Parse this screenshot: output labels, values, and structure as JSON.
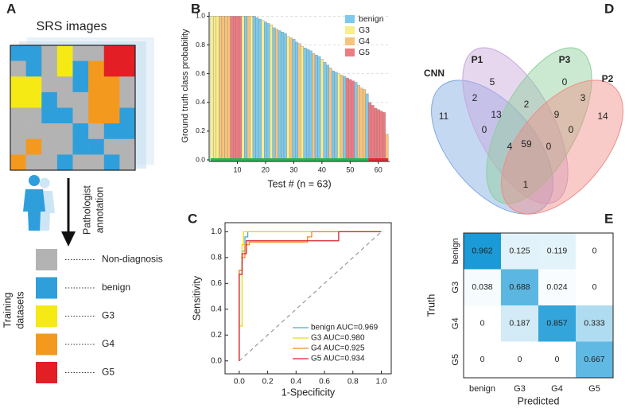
{
  "panels": [
    "A",
    "B",
    "C",
    "D",
    "E"
  ],
  "panel_a": {
    "title": "SRS images",
    "annotation": [
      "Pathologist",
      "annotation"
    ],
    "training": [
      "Training",
      "datasets"
    ],
    "legend": [
      {
        "label": "Non-diagnosis",
        "color": "#b3b3b3"
      },
      {
        "label": "benign",
        "color": "#2f9fdc"
      },
      {
        "label": "G3",
        "color": "#f5ea14"
      },
      {
        "label": "G4",
        "color": "#f39a1e"
      },
      {
        "label": "G5",
        "color": "#e31e24"
      }
    ]
  },
  "chart_data": [
    {
      "type": "bar",
      "x_label": "Test # (n = 63)",
      "y_label": "Ground truth class probability",
      "x": [
        1,
        2,
        3,
        4,
        5,
        6,
        7,
        8,
        9,
        10,
        11,
        12,
        13,
        14,
        15,
        16,
        17,
        18,
        19,
        20,
        21,
        22,
        23,
        24,
        25,
        26,
        27,
        28,
        29,
        30,
        31,
        32,
        33,
        34,
        35,
        36,
        37,
        38,
        39,
        40,
        41,
        42,
        43,
        44,
        45,
        46,
        47,
        48,
        49,
        50,
        51,
        52,
        53,
        54,
        55,
        56,
        57,
        58,
        59,
        60,
        61,
        62,
        63
      ],
      "values": [
        1,
        1,
        1,
        1,
        1,
        1,
        1,
        1,
        1,
        1,
        1,
        1,
        1,
        1,
        1,
        1,
        0.99,
        0.98,
        0.97,
        0.96,
        0.95,
        0.94,
        0.92,
        0.91,
        0.9,
        0.89,
        0.88,
        0.86,
        0.85,
        0.84,
        0.82,
        0.81,
        0.79,
        0.78,
        0.77,
        0.76,
        0.74,
        0.73,
        0.72,
        0.7,
        0.68,
        0.66,
        0.64,
        0.62,
        0.61,
        0.6,
        0.59,
        0.58,
        0.57,
        0.56,
        0.55,
        0.54,
        0.52,
        0.5,
        0.49,
        0.46,
        0.4,
        0.38,
        0.36,
        0.35,
        0.34,
        0.33,
        0.18
      ],
      "bar_class": [
        1,
        1,
        1,
        2,
        2,
        2,
        2,
        3,
        3,
        3,
        3,
        1,
        0,
        2,
        1,
        0,
        0,
        0,
        1,
        0,
        0,
        1,
        0,
        2,
        0,
        0,
        0,
        1,
        2,
        0,
        0,
        2,
        1,
        0,
        0,
        0,
        2,
        0,
        0,
        1,
        0,
        0,
        2,
        0,
        0,
        1,
        2,
        0,
        3,
        3,
        3,
        0,
        2,
        2,
        2,
        0,
        3,
        3,
        3,
        3,
        3,
        3,
        2
      ],
      "correct": [
        true,
        true,
        true,
        true,
        true,
        true,
        true,
        true,
        true,
        true,
        true,
        true,
        true,
        true,
        true,
        true,
        true,
        true,
        true,
        true,
        true,
        true,
        true,
        true,
        true,
        true,
        true,
        true,
        true,
        true,
        true,
        true,
        true,
        true,
        true,
        true,
        true,
        true,
        true,
        true,
        true,
        true,
        true,
        true,
        true,
        true,
        true,
        true,
        true,
        true,
        true,
        true,
        true,
        true,
        true,
        true,
        false,
        false,
        false,
        false,
        false,
        false,
        false
      ],
      "strip_colors": {
        "correct": "#2bb34a",
        "incorrect": "#e8262a"
      },
      "legend": [
        {
          "name": "benign",
          "color": "#7ccaec"
        },
        {
          "name": "G3",
          "color": "#f8ee8c"
        },
        {
          "name": "G4",
          "color": "#f8c47c"
        },
        {
          "name": "G5",
          "color": "#ee7a82"
        }
      ],
      "legend_position": "upper right",
      "xlim": [
        0,
        64
      ],
      "xticks": [
        10,
        20,
        30,
        40,
        50,
        60
      ],
      "ylim": [
        0,
        1.03
      ],
      "yticks": [
        {
          "value": 0,
          "label": "0.0"
        },
        {
          "value": 0.2,
          "label": "0.2"
        },
        {
          "value": 0.4,
          "label": "0.4"
        },
        {
          "value": 0.6,
          "label": "0.6"
        },
        {
          "value": 0.8,
          "label": "0.8"
        },
        {
          "value": 1,
          "label": "1.0"
        }
      ],
      "grid": true
    },
    {
      "type": "line",
      "x_label": "1-Specificity",
      "y_label": "Sensitivity",
      "series": [
        {
          "name": "benign AUC=0.969",
          "color": "#4aa8df",
          "x": [
            0,
            0,
            0.02,
            0.02,
            0.04,
            0.04,
            0.06,
            0.06,
            1
          ],
          "values": [
            0,
            0.7,
            0.7,
            0.85,
            0.85,
            0.96,
            0.96,
            1,
            1
          ]
        },
        {
          "name": "G3 AUC=0.980",
          "color": "#e6df00",
          "x": [
            0,
            0,
            0.02,
            0.02,
            0.03,
            0.03,
            1
          ],
          "values": [
            0,
            0.27,
            0.27,
            0.9,
            0.9,
            1,
            1
          ]
        },
        {
          "name": "G4 AUC=0.925",
          "color": "#f08a24",
          "x": [
            0,
            0,
            0.02,
            0.02,
            0.04,
            0.04,
            0.07,
            0.07,
            0.48,
            0.48,
            0.51,
            0.51,
            1
          ],
          "values": [
            0,
            0.7,
            0.7,
            0.8,
            0.8,
            0.9,
            0.9,
            0.92,
            0.92,
            0.96,
            0.96,
            1,
            1
          ]
        },
        {
          "name": "G5 AUC=0.934",
          "color": "#d9232a",
          "x": [
            0,
            0,
            0.02,
            0.02,
            0.05,
            0.05,
            0.7,
            0.7,
            1
          ],
          "values": [
            0,
            0.67,
            0.67,
            0.83,
            0.83,
            0.93,
            0.93,
            1,
            1
          ]
        }
      ],
      "diagonal": true,
      "legend_position": "lower right",
      "xlim": [
        -0.1,
        1.07
      ],
      "ylim": [
        -0.1,
        1.07
      ],
      "xticks": [
        {
          "value": 0,
          "label": "0.0"
        },
        {
          "value": 0.2,
          "label": "0.2"
        },
        {
          "value": 0.4,
          "label": "0.4"
        },
        {
          "value": 0.6,
          "label": "0.6"
        },
        {
          "value": 0.8,
          "label": "0.8"
        },
        {
          "value": 1,
          "label": "1.0"
        }
      ],
      "yticks": [
        {
          "value": 0,
          "label": "0.0"
        },
        {
          "value": 0.2,
          "label": "0.2"
        },
        {
          "value": 0.4,
          "label": "0.4"
        },
        {
          "value": 0.6,
          "label": "0.6"
        },
        {
          "value": 0.8,
          "label": "0.8"
        },
        {
          "value": 1,
          "label": "1.0"
        }
      ]
    },
    {
      "type": "venn",
      "sets": [
        {
          "name": "CNN",
          "color": "#7fa9e2"
        },
        {
          "name": "P1",
          "color": "#c8a6dc"
        },
        {
          "name": "P3",
          "color": "#8ccf9a"
        },
        {
          "name": "P2",
          "color": "#f08c86"
        }
      ],
      "regions": [
        {
          "sets": [
            0
          ],
          "value": 11
        },
        {
          "sets": [
            1
          ],
          "value": 5
        },
        {
          "sets": [
            2
          ],
          "value": 0
        },
        {
          "sets": [
            3
          ],
          "value": 14
        },
        {
          "sets": [
            0,
            1
          ],
          "value": 2
        },
        {
          "sets": [
            1,
            2
          ],
          "value": 2
        },
        {
          "sets": [
            2,
            3
          ],
          "value": 3
        },
        {
          "sets": [
            0,
            1,
            2
          ],
          "value": 13
        },
        {
          "sets": [
            1,
            2,
            3
          ],
          "value": 9
        },
        {
          "sets": [
            0,
            2
          ],
          "value": 0
        },
        {
          "sets": [
            0,
            1,
            2,
            3
          ],
          "value": 59
        },
        {
          "sets": [
            0,
            2,
            3
          ],
          "value": 4
        },
        {
          "sets": [
            0,
            1,
            3
          ],
          "value": 0
        },
        {
          "sets": [
            1,
            3
          ],
          "value": 0
        },
        {
          "sets": [
            0,
            3
          ],
          "value": 1
        }
      ]
    },
    {
      "type": "heatmap",
      "x_label": "Predicted",
      "y_label": "Truth",
      "x_categories": [
        "benign",
        "G3",
        "G4",
        "G5"
      ],
      "y_categories": [
        "benign",
        "G3",
        "G4",
        "G5"
      ],
      "values": [
        [
          0.962,
          0.125,
          0.119,
          0
        ],
        [
          0.038,
          0.688,
          0.024,
          0
        ],
        [
          0,
          0.187,
          0.857,
          0.333
        ],
        [
          0,
          0,
          0,
          0.667
        ]
      ],
      "colorscale": [
        "#ffffff",
        "#1a9ad6"
      ]
    }
  ]
}
